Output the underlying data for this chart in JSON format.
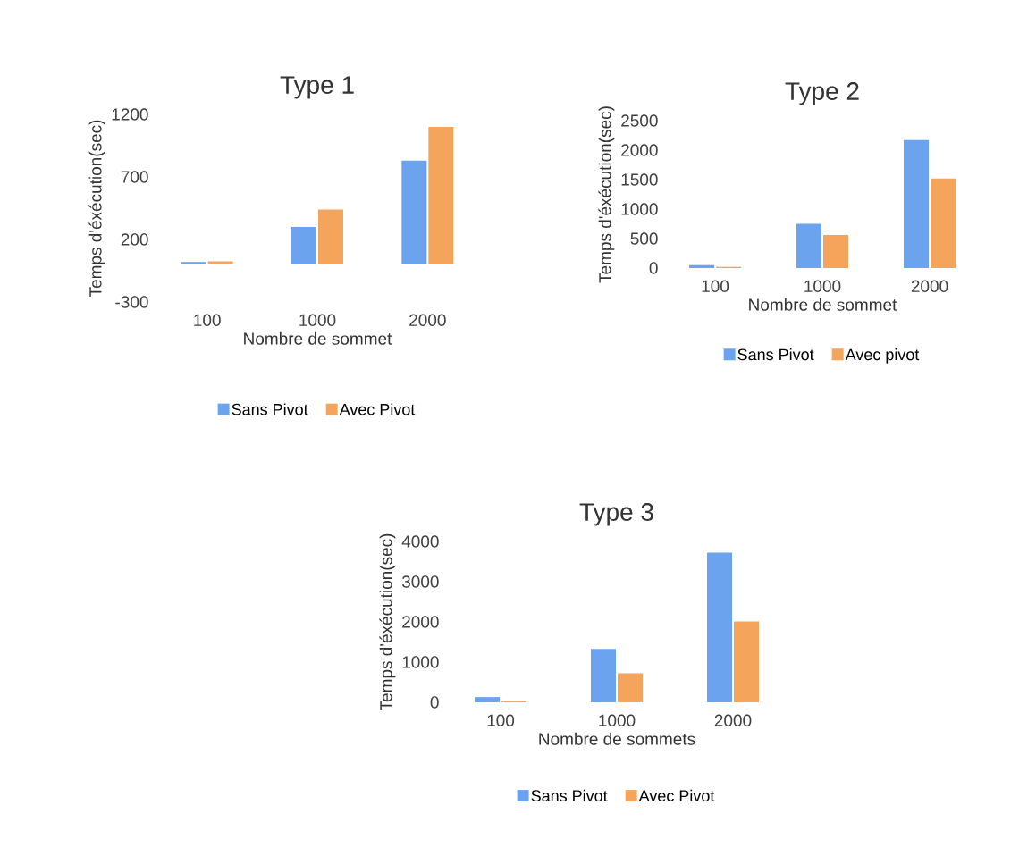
{
  "chart_data": [
    {
      "type": "bar",
      "title": "Type 1",
      "xlabel": "Nombre de sommet",
      "ylabel": "Temps d'éxécution(sec)",
      "categories": [
        "100",
        "1000",
        "2000"
      ],
      "ylim": [
        -300,
        1200
      ],
      "yticks": [
        -300,
        200,
        700,
        1200
      ],
      "legend": "bottom",
      "series": [
        {
          "name": "Sans Pivot",
          "color": "#6ca3ee",
          "values": [
            20,
            300,
            830
          ]
        },
        {
          "name": "Avec Pivot",
          "color": "#f5a45c",
          "values": [
            25,
            440,
            1100
          ]
        }
      ]
    },
    {
      "type": "bar",
      "title": "Type 2",
      "xlabel": "Nombre de sommet",
      "ylabel": "Temps d'éxécution(sec)",
      "categories": [
        "100",
        "1000",
        "2000"
      ],
      "ylim": [
        0,
        2500
      ],
      "yticks": [
        0,
        500,
        1000,
        1500,
        2000,
        2500
      ],
      "legend": "bottom",
      "series": [
        {
          "name": "Sans Pivot",
          "color": "#6ca3ee",
          "values": [
            50,
            750,
            2170
          ]
        },
        {
          "name": "Avec pivot",
          "color": "#f5a45c",
          "values": [
            20,
            560,
            1520
          ]
        }
      ]
    },
    {
      "type": "bar",
      "title": "Type 3",
      "xlabel": "Nombre de sommets",
      "ylabel": "Temps d'éxécution(sec)",
      "categories": [
        "100",
        "1000",
        "2000"
      ],
      "ylim": [
        0,
        4000
      ],
      "yticks": [
        0,
        1000,
        2000,
        3000,
        4000
      ],
      "legend": "bottom",
      "series": [
        {
          "name": "Sans Pivot",
          "color": "#6ca3ee",
          "values": [
            130,
            1330,
            3720
          ]
        },
        {
          "name": "Avec Pivot",
          "color": "#f5a45c",
          "values": [
            40,
            720,
            2010
          ]
        }
      ]
    }
  ]
}
